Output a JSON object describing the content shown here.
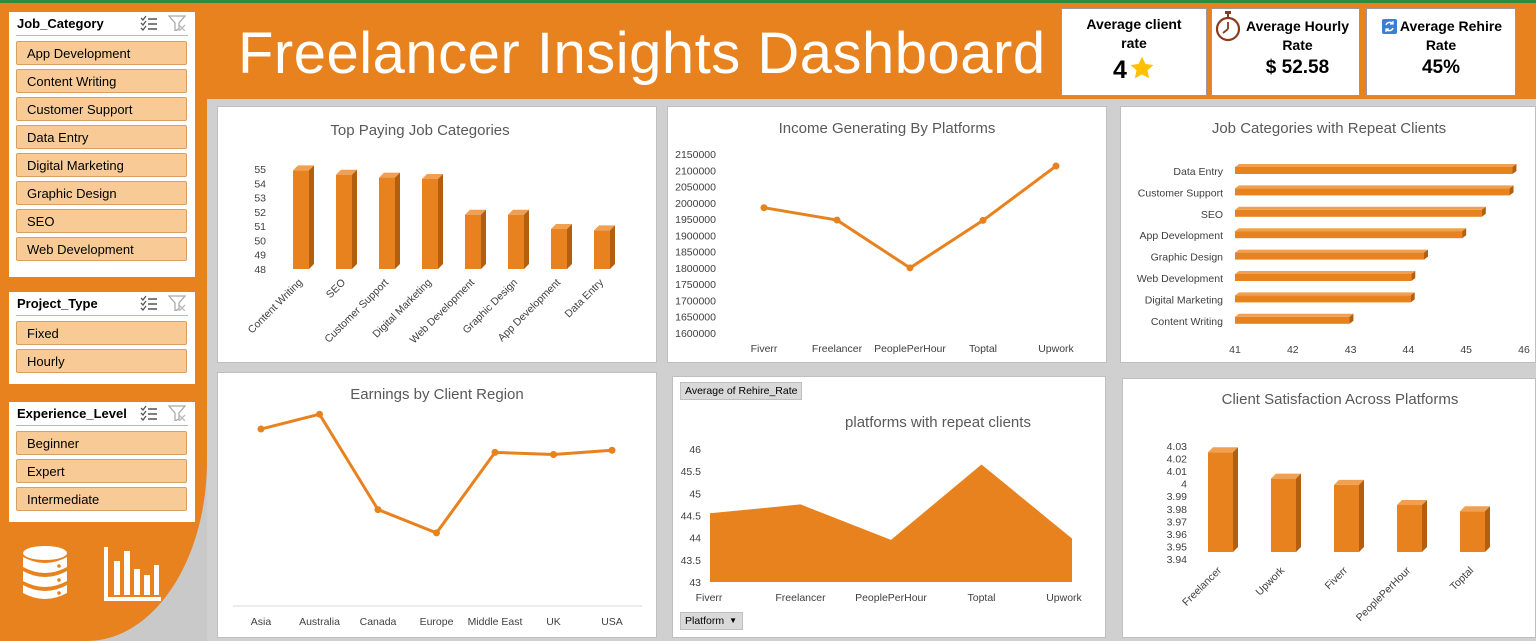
{
  "header": {
    "title": "Freelancer Insights Dashboard"
  },
  "slicers": {
    "job_category": {
      "title": "Job_Category",
      "items": [
        "App Development",
        "Content Writing",
        "Customer Support",
        "Data Entry",
        "Digital Marketing",
        "Graphic Design",
        "SEO",
        "Web Development"
      ]
    },
    "project_type": {
      "title": "Project_Type",
      "items": [
        "Fixed",
        "Hourly"
      ]
    },
    "experience_level": {
      "title": "Experience_Level",
      "items": [
        "Beginner",
        "Expert",
        "Intermediate"
      ]
    }
  },
  "kpis": {
    "client_rate": {
      "label_line1": "Average client",
      "label_line2": "rate",
      "value": "4",
      "icon": "star-icon"
    },
    "hourly_rate": {
      "label_line1": "Average Hourly",
      "label_line2": "Rate",
      "value": "$ 52.58",
      "icon": "stopwatch-icon"
    },
    "rehire_rate": {
      "label_line1": "Average Rehire",
      "label_line2": "Rate",
      "value": "45%",
      "icon": "refresh-icon"
    }
  },
  "pivot_buttons": {
    "value_field": "Average of Rehire_Rate",
    "row_field": "Platform"
  },
  "sidebar_icons": [
    "database-icon",
    "bar-chart-icon"
  ],
  "colors": {
    "accent": "#e8821e",
    "bar": "#e8821e",
    "bar_side": "#b35f0d"
  },
  "chart_data": [
    {
      "id": "top_paying",
      "type": "bar",
      "title": "Top Paying Job Categories",
      "categories": [
        "Content Writing",
        "SEO",
        "Customer Support",
        "Digital Marketing",
        "Web Development",
        "Graphic Design",
        "App Development",
        "Data Entry"
      ],
      "values": [
        54.9,
        54.6,
        54.4,
        54.3,
        51.8,
        51.8,
        50.8,
        50.7
      ],
      "ylim": [
        48,
        55
      ],
      "yticks": [
        48,
        49,
        50,
        51,
        52,
        53,
        54,
        55
      ]
    },
    {
      "id": "income_platforms",
      "type": "line",
      "title": "Income Generating By Platforms",
      "categories": [
        "Fiverr",
        "Freelancer",
        "PeoplePerHour",
        "Toptal",
        "Upwork"
      ],
      "values": [
        1985000,
        1947000,
        1800000,
        1946000,
        2113000
      ],
      "ylim": [
        1600000,
        2150000
      ],
      "yticks": [
        1600000,
        1650000,
        1700000,
        1750000,
        1800000,
        1850000,
        1900000,
        1950000,
        2000000,
        2050000,
        2100000,
        2150000
      ]
    },
    {
      "id": "repeat_clients_jobs",
      "type": "bar",
      "orientation": "horizontal",
      "title": "Job Categories with Repeat Clients",
      "categories": [
        "Data Entry",
        "Customer Support",
        "SEO",
        "App Development",
        "Graphic Design",
        "Web Development",
        "Digital Marketing",
        "Content Writing"
      ],
      "values": [
        45.8,
        45.75,
        45.27,
        44.93,
        44.27,
        44.05,
        44.04,
        42.98
      ],
      "xlim": [
        41,
        46
      ],
      "xticks": [
        41,
        42,
        43,
        44,
        45,
        46
      ]
    },
    {
      "id": "earnings_region",
      "type": "line",
      "title": "Earnings by Client Region",
      "categories": [
        "Asia",
        "Australia",
        "Canada",
        "Europe",
        "Middle East",
        "UK",
        "USA"
      ],
      "values": [
        0.83,
        0.9,
        0.45,
        0.34,
        0.72,
        0.71,
        0.73
      ],
      "ylim": [
        0,
        1
      ]
    },
    {
      "id": "platform_repeat",
      "type": "area",
      "title": "platforms with repeat clients",
      "categories": [
        "Fiverr",
        "Freelancer",
        "PeoplePerHour",
        "Toptal",
        "Upwork"
      ],
      "values": [
        44.55,
        44.75,
        43.95,
        45.65,
        43.98
      ],
      "ylim": [
        43,
        46
      ],
      "yticks": [
        43,
        43.5,
        44,
        44.5,
        45,
        45.5,
        46
      ]
    },
    {
      "id": "satisfaction",
      "type": "bar",
      "title": "Client Satisfaction Across Platforms",
      "categories": [
        "Freelancer",
        "Upwork",
        "Fiverr",
        "PeoplePerHour",
        "Toptal"
      ],
      "values": [
        4.025,
        4.004,
        3.999,
        3.983,
        3.978
      ],
      "ylim": [
        3.94,
        4.03
      ],
      "yticks": [
        3.94,
        3.95,
        3.96,
        3.97,
        3.98,
        3.99,
        4,
        4.01,
        4.02,
        4.03
      ]
    }
  ]
}
